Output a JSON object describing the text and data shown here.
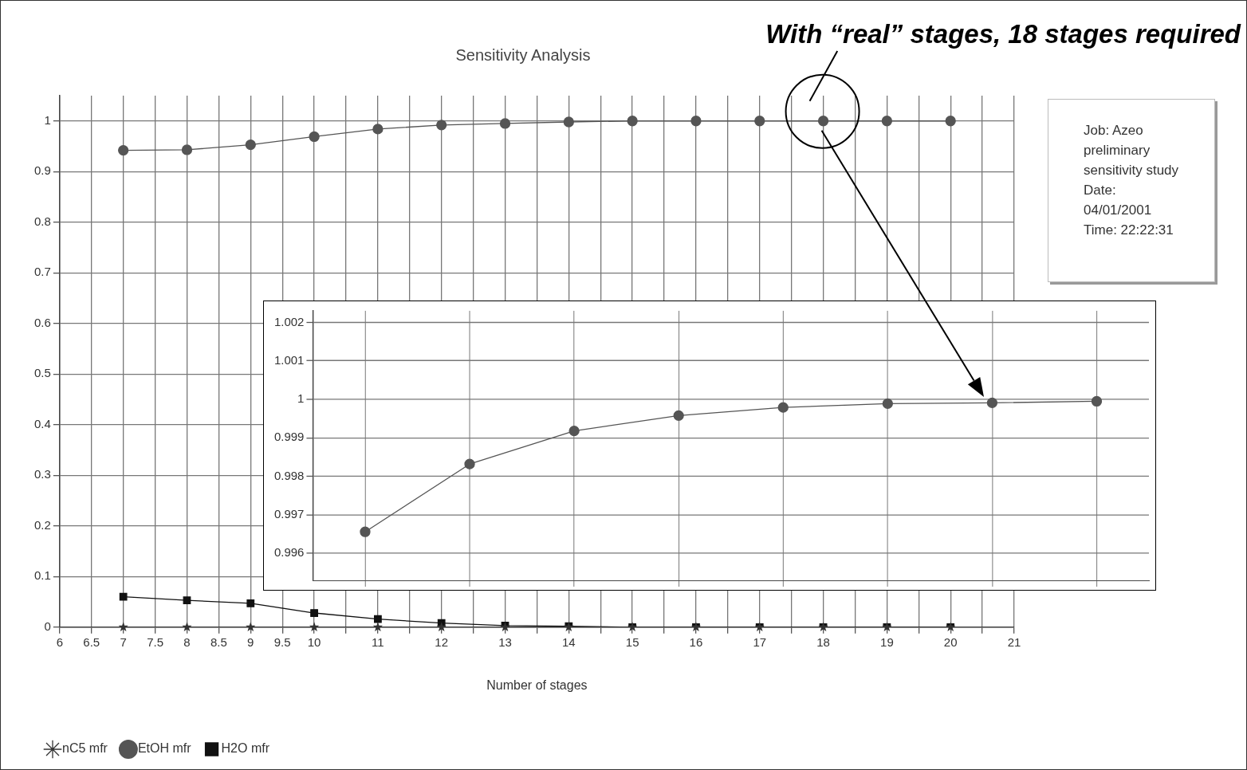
{
  "chart_data": [
    {
      "type": "line",
      "title": "Sensitivity Analysis",
      "xlabel": "Number of stages",
      "x": [
        7,
        8,
        9,
        10,
        11,
        12,
        13,
        14,
        15,
        16,
        17,
        18,
        19,
        20
      ],
      "series": [
        {
          "name": "nC5 mfr",
          "color": "#333333",
          "marker": "star",
          "values": [
            0,
            0,
            0,
            0,
            0,
            0,
            0,
            0,
            0,
            0,
            0,
            0,
            0,
            0
          ]
        },
        {
          "name": "EtOH mfr",
          "color": "#555555",
          "marker": "circle",
          "values": [
            0.942,
            0.943,
            0.953,
            0.969,
            0.984,
            0.992,
            0.995,
            0.998,
            1.0,
            1.0,
            1.0,
            1.0,
            1.0,
            1.0
          ]
        },
        {
          "name": "H2O mfr",
          "color": "#111111",
          "marker": "square",
          "values": [
            0.06,
            0.053,
            0.047,
            0.028,
            0.016,
            0.008,
            0.003,
            0.002,
            0,
            0,
            0,
            0,
            0,
            0
          ]
        }
      ],
      "xlim": [
        6,
        21
      ],
      "xticks": [
        6,
        6.5,
        7,
        7.5,
        8,
        8.5,
        9,
        9.5,
        10,
        {
          "value": 10.5,
          "label": null
        },
        11,
        {
          "value": 11.5,
          "label": null
        },
        12,
        {
          "value": 12.5,
          "label": null
        },
        13,
        {
          "value": 13.5,
          "label": null
        },
        14,
        {
          "value": 14.5,
          "label": null
        },
        15,
        {
          "value": 15.5,
          "label": null
        },
        16,
        {
          "value": 16.5,
          "label": null
        },
        17,
        {
          "value": 17.5,
          "label": null
        },
        18,
        {
          "value": 18.5,
          "label": null
        },
        19,
        {
          "value": 19.5,
          "label": null
        },
        20,
        {
          "value": 20.5,
          "label": null
        },
        21
      ],
      "ylim": [
        0,
        1.05
      ],
      "yticks": [
        0,
        0.1,
        0.2,
        0.3,
        0.4,
        0.5,
        0.6,
        0.7,
        0.8,
        0.9,
        1
      ],
      "grid": true,
      "legend": "bottom left",
      "annotations": [
        {
          "text": "With “real” stages, 18 stages required",
          "x": 18,
          "y": 1
        },
        "Job:  Azeo preliminary sensitivity study Date: 04/01/2001 Time: 22:22:31"
      ]
    },
    {
      "type": "line",
      "categories": [
        null,
        null,
        null,
        null,
        null,
        null,
        null,
        null
      ],
      "series": [
        {
          "color": "#555555",
          "marker": "circle",
          "values": [
            0.99656,
            0.99832,
            0.99918,
            0.99958,
            0.99979,
            0.99989,
            0.99991,
            0.99995
          ]
        }
      ],
      "ylim": [
        0.9953,
        1.0023
      ],
      "yticks": [
        0.996,
        0.997,
        0.998,
        0.999,
        1,
        1.001,
        1.002
      ],
      "grid": true,
      "tick_labels": "y"
    }
  ]
}
